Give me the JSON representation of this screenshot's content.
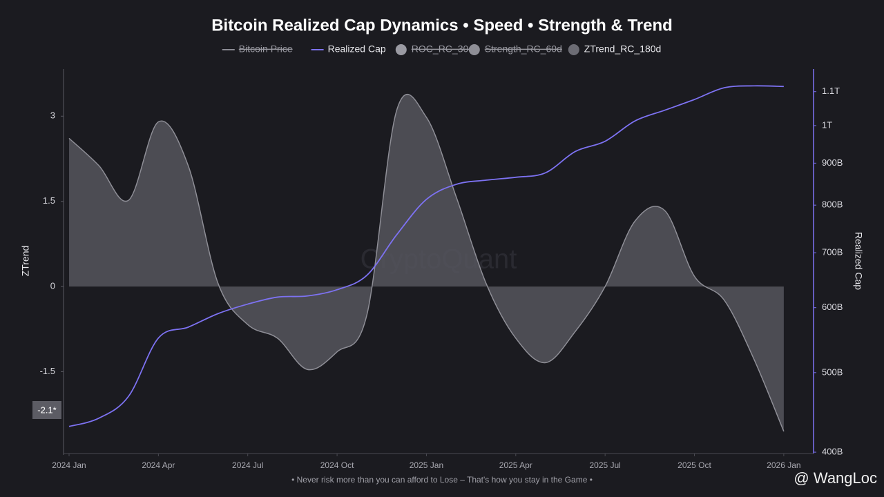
{
  "chart_data": {
    "type": "line",
    "title": "Bitcoin Realized Cap Dynamics • Speed • Strength & Trend",
    "x": [
      "2024-01",
      "2024-02",
      "2024-03",
      "2024-04",
      "2024-05",
      "2024-06",
      "2024-07",
      "2024-08",
      "2024-09",
      "2024-10",
      "2024-11",
      "2024-12",
      "2025-01",
      "2025-02",
      "2025-03",
      "2025-04",
      "2025-05",
      "2025-06",
      "2025-07",
      "2025-08",
      "2025-09",
      "2025-10",
      "2025-11",
      "2025-12",
      "2026-01"
    ],
    "xlim": [
      "2024-01",
      "2026-02"
    ],
    "xticks": [
      {
        "value": "2024-01",
        "label": "2024 Jan"
      },
      {
        "value": "2024-04",
        "label": "2024 Apr"
      },
      {
        "value": "2024-07",
        "label": "2024 Jul"
      },
      {
        "value": "2024-10",
        "label": "2024 Oct"
      },
      {
        "value": "2025-01",
        "label": "2025 Jan"
      },
      {
        "value": "2025-04",
        "label": "2025 Apr"
      },
      {
        "value": "2025-07",
        "label": "2025 Jul"
      },
      {
        "value": "2025-10",
        "label": "2025 Oct"
      },
      {
        "value": "2026-01",
        "label": "2026 Jan"
      }
    ],
    "ylabel": "ZTrend",
    "ylim": [
      -2.94,
      3.83
    ],
    "yticks": [
      3,
      1.5,
      0,
      -1.5
    ],
    "y2label": "Realized Cap",
    "y2scale": "log",
    "y2lim": [
      398500000000,
      1172000000000
    ],
    "y2ticks": [
      {
        "value": 400000000000,
        "label": "400B"
      },
      {
        "value": 500000000000,
        "label": "500B"
      },
      {
        "value": 600000000000,
        "label": "600B"
      },
      {
        "value": 700000000000,
        "label": "700B"
      },
      {
        "value": 800000000000,
        "label": "800B"
      },
      {
        "value": 900000000000,
        "label": "900B"
      },
      {
        "value": 1000000000000,
        "label": "1T"
      },
      {
        "value": 1100000000000,
        "label": "1.1T"
      }
    ],
    "series": [
      {
        "name": "Bitcoin Price",
        "color": "#8c8c94",
        "symbol": "line",
        "visible": false
      },
      {
        "name": "Realized Cap",
        "color": "#7d72f2",
        "symbol": "line",
        "visible": true,
        "axis": "y2",
        "style": "line",
        "values": [
          430000000000,
          440000000000,
          468000000000,
          551000000000,
          568000000000,
          590000000000,
          606000000000,
          618000000000,
          620000000000,
          631000000000,
          657000000000,
          736000000000,
          813000000000,
          848000000000,
          858000000000,
          865000000000,
          876000000000,
          930000000000,
          957000000000,
          1013000000000,
          1044000000000,
          1076000000000,
          1112000000000,
          1118000000000,
          1116000000000
        ]
      },
      {
        "name": "ROC_RC_30d",
        "color": "#9a9aa2",
        "symbol": "circle",
        "visible": false
      },
      {
        "name": "Strength_RC_60d",
        "color": "#8e8e96",
        "symbol": "circle",
        "visible": false
      },
      {
        "name": "ZTrend_RC_180d",
        "color": "#6c6c74",
        "symbol": "circle",
        "visible": true,
        "axis": "y",
        "style": "area",
        "values": [
          2.61,
          2.13,
          1.52,
          2.9,
          2.13,
          0.06,
          -0.67,
          -0.91,
          -1.46,
          -1.15,
          -0.5,
          3.1,
          2.98,
          1.58,
          0.06,
          -0.91,
          -1.34,
          -0.79,
          0,
          1.15,
          1.34,
          0.18,
          -0.24,
          -1.28,
          -2.55
        ]
      }
    ],
    "last_value_label": "-2.1*",
    "watermark": "CryptoQuant",
    "footer": "• Never risk more than you can afford to Lose – That's how you stay in the Game •",
    "credit": "@ WangLoc"
  }
}
